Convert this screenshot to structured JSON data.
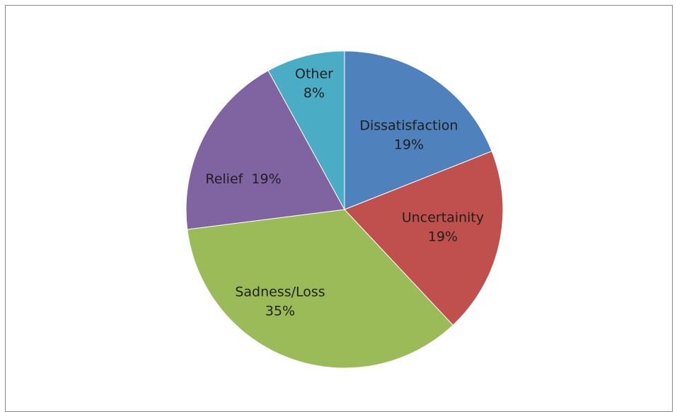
{
  "chart_data": {
    "type": "pie",
    "title": "",
    "slices": [
      {
        "name": "Dissatisfaction",
        "value": 19,
        "label_lines": [
          "Dissatisfaction",
          "19%"
        ],
        "color": "#4F81BD"
      },
      {
        "name": "Uncertainity",
        "value": 19,
        "label_lines": [
          "Uncertainity",
          "19%"
        ],
        "color": "#C0504D"
      },
      {
        "name": "Sadness/Loss",
        "value": 35,
        "label_lines": [
          "Sadness/Loss",
          "35%"
        ],
        "color": "#9BBB59"
      },
      {
        "name": "Relief",
        "value": 19,
        "label_lines": [
          "Relief  19%"
        ],
        "color": "#8064A2"
      },
      {
        "name": "Other",
        "value": 8,
        "label_lines": [
          "Other",
          "8%"
        ],
        "color": "#4BACC6"
      }
    ],
    "legend": "none",
    "start_angle": "12 o'clock",
    "direction": "clockwise"
  }
}
